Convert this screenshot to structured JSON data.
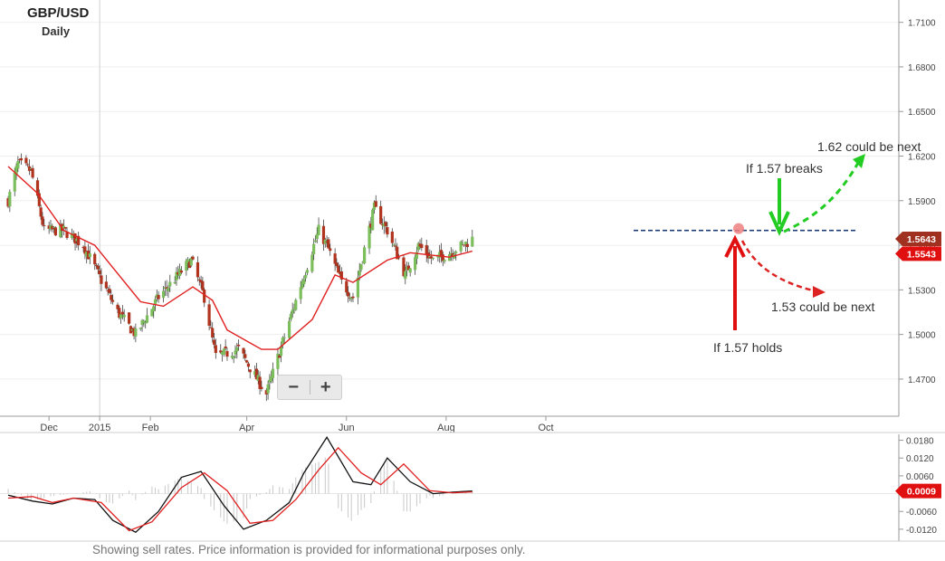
{
  "header": {
    "title": "GBP/USD",
    "subtitle": "Daily"
  },
  "zoom": {
    "minus": "−",
    "plus": "+"
  },
  "footer": "Showing sell rates. Price information is provided for informational purposes only.",
  "annotations": {
    "breaks": "If 1.57 breaks",
    "up_target": "1.62 could be next",
    "holds": "If 1.57 holds",
    "down_target": "1.53 could be next"
  },
  "colors": {
    "up_candle": "#7dbe5c",
    "down_candle": "#b0341e",
    "ma_line": "#e02020",
    "resistance": "#1f3f7a",
    "green_arrow": "#22cc22",
    "red_arrow": "#e01010",
    "badge_dark": "#a03020",
    "badge_red": "#e01010"
  },
  "chart_data": [
    {
      "type": "candlestick",
      "title": "GBP/USD",
      "subtitle": "Daily",
      "x_tick_labels": [
        "Dec",
        "2015",
        "Feb",
        "Apr",
        "Jun",
        "Aug",
        "Oct"
      ],
      "y_tick_labels": [
        "1.7100",
        "1.6800",
        "1.6500",
        "1.6200",
        "1.5900",
        "1.5600",
        "1.5300",
        "1.5000",
        "1.4700"
      ],
      "ylim": [
        1.445,
        1.725
      ],
      "price_badges": [
        {
          "label": "1.5643",
          "value": 1.5643,
          "color": "#a03020"
        },
        {
          "label": "1.5543",
          "value": 1.5543,
          "color": "#e01010"
        }
      ],
      "resistance_level": 1.57,
      "close_series_keypoints": [
        {
          "date": "2014-11-06",
          "close": 1.59
        },
        {
          "date": "2014-11-12",
          "close": 1.615
        },
        {
          "date": "2014-11-20",
          "close": 1.61
        },
        {
          "date": "2014-11-28",
          "close": 1.57
        },
        {
          "date": "2014-12-10",
          "close": 1.57
        },
        {
          "date": "2014-12-22",
          "close": 1.56
        },
        {
          "date": "2015-01-05",
          "close": 1.53
        },
        {
          "date": "2015-01-12",
          "close": 1.515
        },
        {
          "date": "2015-01-23",
          "close": 1.5
        },
        {
          "date": "2015-02-06",
          "close": 1.525
        },
        {
          "date": "2015-02-26",
          "close": 1.55
        },
        {
          "date": "2015-03-06",
          "close": 1.525
        },
        {
          "date": "2015-03-13",
          "close": 1.485
        },
        {
          "date": "2015-03-27",
          "close": 1.49
        },
        {
          "date": "2015-04-13",
          "close": 1.46
        },
        {
          "date": "2015-04-23",
          "close": 1.495
        },
        {
          "date": "2015-05-06",
          "close": 1.54
        },
        {
          "date": "2015-05-15",
          "close": 1.57
        },
        {
          "date": "2015-05-20",
          "close": 1.56
        },
        {
          "date": "2015-05-29",
          "close": 1.535
        },
        {
          "date": "2015-06-05",
          "close": 1.525
        },
        {
          "date": "2015-06-18",
          "close": 1.585
        },
        {
          "date": "2015-06-26",
          "close": 1.57
        },
        {
          "date": "2015-07-07",
          "close": 1.54
        },
        {
          "date": "2015-07-15",
          "close": 1.56
        },
        {
          "date": "2015-07-24",
          "close": 1.55
        },
        {
          "date": "2015-08-03",
          "close": 1.555
        },
        {
          "date": "2015-08-11",
          "close": 1.56
        },
        {
          "date": "2015-08-17",
          "close": 1.5643
        }
      ],
      "moving_average_keypoints": [
        {
          "date": "2014-11-06",
          "value": 1.613
        },
        {
          "date": "2014-11-24",
          "value": 1.595
        },
        {
          "date": "2014-12-10",
          "value": 1.57
        },
        {
          "date": "2014-12-29",
          "value": 1.56
        },
        {
          "date": "2015-01-09",
          "value": 1.545
        },
        {
          "date": "2015-01-26",
          "value": 1.522
        },
        {
          "date": "2015-02-09",
          "value": 1.519
        },
        {
          "date": "2015-02-27",
          "value": 1.532
        },
        {
          "date": "2015-03-11",
          "value": 1.523
        },
        {
          "date": "2015-03-20",
          "value": 1.503
        },
        {
          "date": "2015-04-10",
          "value": 1.49
        },
        {
          "date": "2015-04-20",
          "value": 1.49
        },
        {
          "date": "2015-05-11",
          "value": 1.51
        },
        {
          "date": "2015-05-25",
          "value": 1.54
        },
        {
          "date": "2015-06-05",
          "value": 1.535
        },
        {
          "date": "2015-06-26",
          "value": 1.55
        },
        {
          "date": "2015-07-10",
          "value": 1.555
        },
        {
          "date": "2015-08-03",
          "value": 1.552
        },
        {
          "date": "2015-08-17",
          "value": 1.556
        }
      ]
    },
    {
      "type": "line",
      "title": "",
      "y_tick_labels": [
        "0.0180",
        "0.0120",
        "0.0060",
        "-0.0060",
        "-0.0120"
      ],
      "ylim": [
        -0.016,
        0.02
      ],
      "value_badge": {
        "label": "0.0009",
        "value": 0.0009,
        "color": "#e01010"
      },
      "series": [
        {
          "color": "#111111",
          "keypoints": [
            {
              "date": "2014-11-06",
              "value": -0.0005
            },
            {
              "date": "2014-11-21",
              "value": -0.0025
            },
            {
              "date": "2014-12-03",
              "value": -0.0035
            },
            {
              "date": "2014-12-16",
              "value": -0.0015
            },
            {
              "date": "2014-12-29",
              "value": -0.002
            },
            {
              "date": "2015-01-09",
              "value": -0.009
            },
            {
              "date": "2015-01-23",
              "value": -0.013
            },
            {
              "date": "2015-02-06",
              "value": -0.006
            },
            {
              "date": "2015-02-20",
              "value": 0.0055
            },
            {
              "date": "2015-03-04",
              "value": 0.0075
            },
            {
              "date": "2015-03-18",
              "value": -0.004
            },
            {
              "date": "2015-03-30",
              "value": -0.012
            },
            {
              "date": "2015-04-13",
              "value": -0.009
            },
            {
              "date": "2015-04-27",
              "value": -0.003
            },
            {
              "date": "2015-05-06",
              "value": 0.007
            },
            {
              "date": "2015-05-20",
              "value": 0.019
            },
            {
              "date": "2015-06-05",
              "value": 0.004
            },
            {
              "date": "2015-06-16",
              "value": 0.003
            },
            {
              "date": "2015-06-26",
              "value": 0.012
            },
            {
              "date": "2015-07-10",
              "value": 0.004
            },
            {
              "date": "2015-07-24",
              "value": 0.0
            },
            {
              "date": "2015-08-05",
              "value": 0.0005
            },
            {
              "date": "2015-08-17",
              "value": 0.0009
            }
          ]
        },
        {
          "color": "#e02020",
          "keypoints": [
            {
              "date": "2014-11-06",
              "value": -0.0015
            },
            {
              "date": "2014-11-21",
              "value": -0.001
            },
            {
              "date": "2014-12-03",
              "value": -0.003
            },
            {
              "date": "2014-12-16",
              "value": -0.0015
            },
            {
              "date": "2015-01-02",
              "value": -0.003
            },
            {
              "date": "2015-01-19",
              "value": -0.0125
            },
            {
              "date": "2015-02-02",
              "value": -0.0095
            },
            {
              "date": "2015-02-20",
              "value": 0.002
            },
            {
              "date": "2015-03-06",
              "value": 0.007
            },
            {
              "date": "2015-03-20",
              "value": 0.001
            },
            {
              "date": "2015-04-03",
              "value": -0.01
            },
            {
              "date": "2015-04-17",
              "value": -0.009
            },
            {
              "date": "2015-05-01",
              "value": -0.002
            },
            {
              "date": "2015-05-15",
              "value": 0.008
            },
            {
              "date": "2015-05-27",
              "value": 0.0155
            },
            {
              "date": "2015-06-10",
              "value": 0.007
            },
            {
              "date": "2015-06-22",
              "value": 0.003
            },
            {
              "date": "2015-07-06",
              "value": 0.01
            },
            {
              "date": "2015-07-22",
              "value": 0.001
            },
            {
              "date": "2015-08-05",
              "value": 0.0003
            },
            {
              "date": "2015-08-17",
              "value": 0.0006
            }
          ]
        }
      ]
    }
  ]
}
